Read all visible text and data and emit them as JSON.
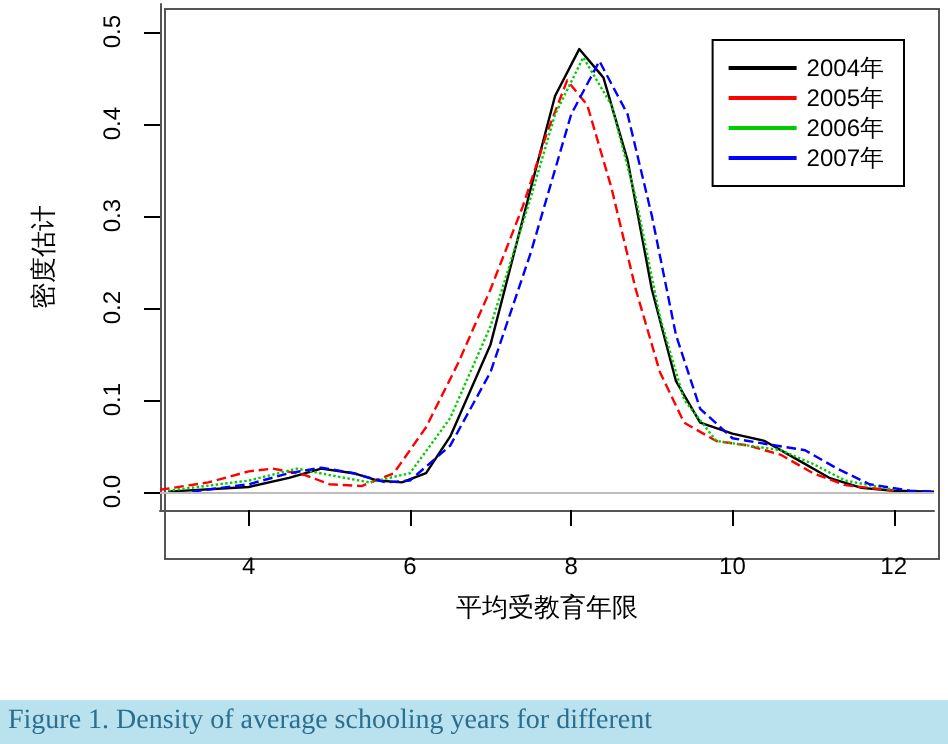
{
  "chart_data": {
    "type": "line",
    "xlabel": "平均受教育年限",
    "ylabel": "密度估计",
    "xlim": [
      2.9,
      12.5
    ],
    "xticks": [
      4,
      6,
      8,
      10,
      12
    ],
    "ylim": [
      -0.02,
      0.53
    ],
    "yticks": [
      {
        "value": 0,
        "label": "0.0"
      },
      {
        "value": 0.1,
        "label": "0.1"
      },
      {
        "value": 0.2,
        "label": "0.2"
      },
      {
        "value": 0.3,
        "label": "0.3"
      },
      {
        "value": 0.4,
        "label": "0.4"
      },
      {
        "value": 0.5,
        "label": "0.5"
      }
    ],
    "grid": false,
    "legend": "top right",
    "marker": "none",
    "ref_lines": [
      {
        "axis": "y",
        "value": 0,
        "color": "#bebebe"
      }
    ],
    "annotations": [
      "Figure 1. Density of average schooling years for different"
    ],
    "series": [
      {
        "name": "2004年",
        "color": "#000000",
        "line_style": "solid",
        "x": [
          3,
          4,
          4.5,
          4.9,
          5.3,
          5.6,
          5.9,
          6.2,
          6.5,
          7,
          7.5,
          7.8,
          8.1,
          8.4,
          8.7,
          9,
          9.3,
          9.6,
          10,
          10.4,
          10.8,
          11.2,
          11.6,
          12,
          12.5
        ],
        "values": [
          0,
          0.005,
          0.015,
          0.025,
          0.02,
          0.012,
          0.01,
          0.02,
          0.06,
          0.16,
          0.33,
          0.43,
          0.481,
          0.45,
          0.36,
          0.22,
          0.12,
          0.075,
          0.063,
          0.055,
          0.035,
          0.015,
          0.004,
          0.001,
          0
        ]
      },
      {
        "name": "2005年",
        "color": "#ff0000",
        "line_style": "dashed",
        "x": [
          2.9,
          3.5,
          4,
          4.3,
          4.7,
          5,
          5.4,
          5.8,
          6.2,
          6.6,
          7,
          7.4,
          7.7,
          7.95,
          8.2,
          8.5,
          8.8,
          9.1,
          9.4,
          9.8,
          10.2,
          10.6,
          11,
          11.4,
          12
        ],
        "values": [
          0.002,
          0.01,
          0.022,
          0.025,
          0.018,
          0.008,
          0.006,
          0.02,
          0.07,
          0.14,
          0.22,
          0.31,
          0.39,
          0.447,
          0.42,
          0.33,
          0.22,
          0.13,
          0.075,
          0.055,
          0.05,
          0.04,
          0.02,
          0.007,
          0.001
        ]
      },
      {
        "name": "2006年",
        "color": "#00cc00",
        "line_style": "dotted",
        "x": [
          3,
          4,
          4.6,
          5,
          5.5,
          6,
          6.5,
          7,
          7.5,
          7.8,
          8.15,
          8.5,
          8.8,
          9.1,
          9.4,
          9.8,
          10.2,
          10.6,
          11,
          11.4,
          12
        ],
        "values": [
          0.001,
          0.012,
          0.025,
          0.018,
          0.01,
          0.02,
          0.08,
          0.18,
          0.32,
          0.41,
          0.472,
          0.42,
          0.32,
          0.19,
          0.1,
          0.055,
          0.05,
          0.045,
          0.03,
          0.012,
          0.002
        ]
      },
      {
        "name": "2007年",
        "color": "#0000ff",
        "line_style": "dashed",
        "x": [
          3.3,
          4,
          4.5,
          4.9,
          5.3,
          5.7,
          6,
          6.5,
          7,
          7.5,
          8,
          8.35,
          8.7,
          9,
          9.3,
          9.6,
          10,
          10.4,
          10.9,
          11.3,
          11.7,
          12.2,
          12.5
        ],
        "values": [
          0,
          0.008,
          0.02,
          0.026,
          0.02,
          0.01,
          0.012,
          0.05,
          0.13,
          0.26,
          0.41,
          0.468,
          0.41,
          0.3,
          0.17,
          0.09,
          0.058,
          0.052,
          0.045,
          0.025,
          0.008,
          0.001,
          0
        ]
      }
    ]
  }
}
